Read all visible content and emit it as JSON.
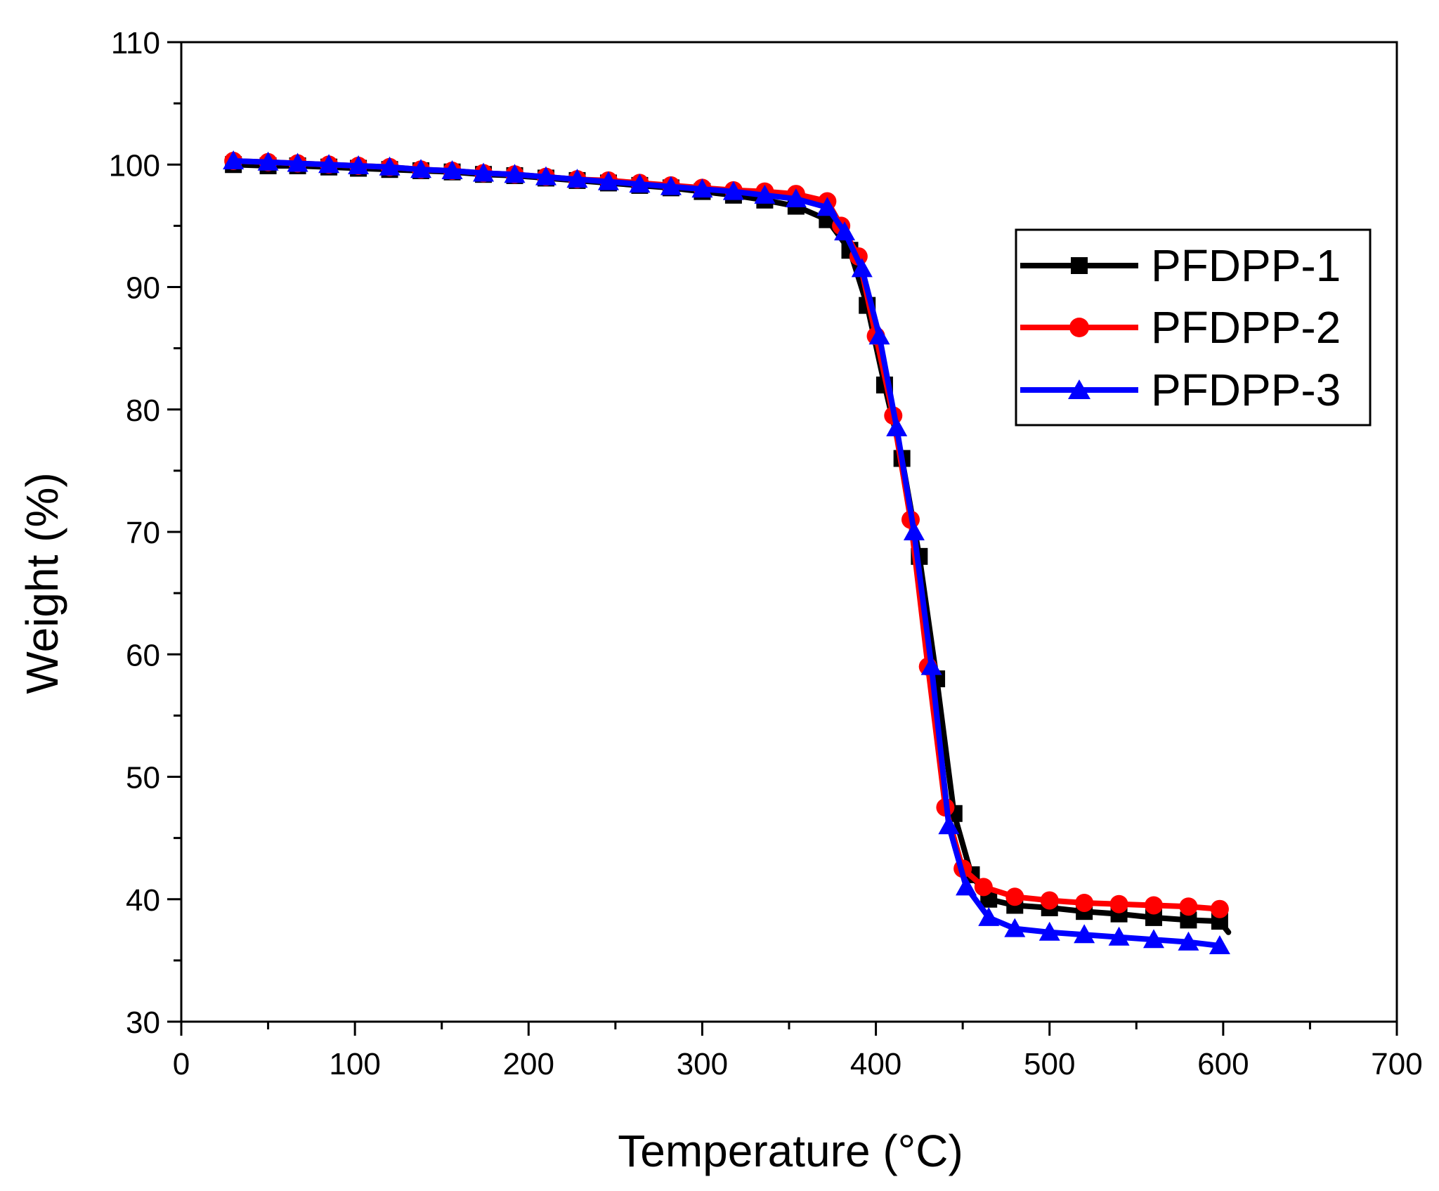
{
  "chart_data": {
    "type": "line",
    "title": "",
    "xlabel": "Temperature (°C)",
    "ylabel": "Weight (%)",
    "xlim": [
      0,
      700
    ],
    "ylim": [
      30,
      110
    ],
    "xticks": [
      0,
      100,
      200,
      300,
      400,
      500,
      600,
      700
    ],
    "yticks": [
      30,
      40,
      50,
      60,
      70,
      80,
      90,
      100,
      110
    ],
    "grid": false,
    "legend_position": "top-right",
    "series": [
      {
        "name": "PFDPP-1",
        "color": "#000000",
        "marker": "square",
        "x": [
          30,
          50,
          67,
          85,
          102,
          120,
          138,
          156,
          174,
          192,
          210,
          228,
          246,
          264,
          282,
          300,
          318,
          336,
          354,
          372,
          385,
          395,
          405,
          415,
          425,
          435,
          445,
          455,
          465,
          480,
          500,
          520,
          540,
          560,
          580,
          598,
          603
        ],
        "y": [
          100.0,
          99.9,
          99.9,
          99.8,
          99.7,
          99.6,
          99.5,
          99.4,
          99.2,
          99.1,
          98.9,
          98.7,
          98.5,
          98.3,
          98.1,
          97.8,
          97.5,
          97.1,
          96.6,
          95.5,
          93.0,
          88.5,
          82.0,
          76.0,
          68.0,
          58.0,
          47.0,
          42.0,
          40.0,
          39.5,
          39.3,
          39.0,
          38.8,
          38.5,
          38.3,
          38.2,
          37.3
        ]
      },
      {
        "name": "PFDPP-2",
        "color": "#ff0000",
        "marker": "circle",
        "x": [
          30,
          50,
          67,
          85,
          102,
          120,
          138,
          156,
          174,
          192,
          210,
          228,
          246,
          264,
          282,
          300,
          318,
          336,
          354,
          372,
          380,
          390,
          400,
          410,
          420,
          430,
          440,
          450,
          462,
          480,
          500,
          520,
          540,
          560,
          580,
          598
        ],
        "y": [
          100.3,
          100.2,
          100.1,
          100.0,
          99.9,
          99.8,
          99.6,
          99.5,
          99.3,
          99.2,
          99.0,
          98.8,
          98.7,
          98.5,
          98.3,
          98.1,
          97.9,
          97.8,
          97.6,
          97.0,
          95.0,
          92.5,
          86.0,
          79.5,
          71.0,
          59.0,
          47.5,
          42.5,
          41.0,
          40.2,
          39.9,
          39.7,
          39.6,
          39.5,
          39.4,
          39.2
        ]
      },
      {
        "name": "PFDPP-3",
        "color": "#0000ff",
        "marker": "triangle",
        "x": [
          30,
          50,
          67,
          85,
          102,
          120,
          138,
          156,
          174,
          192,
          210,
          228,
          246,
          264,
          282,
          300,
          318,
          336,
          354,
          372,
          382,
          392,
          402,
          412,
          422,
          432,
          442,
          452,
          465,
          480,
          500,
          520,
          540,
          560,
          580,
          598
        ],
        "y": [
          100.3,
          100.2,
          100.1,
          100.0,
          99.9,
          99.8,
          99.6,
          99.5,
          99.3,
          99.2,
          99.0,
          98.8,
          98.6,
          98.4,
          98.2,
          98.0,
          97.8,
          97.5,
          97.2,
          96.5,
          94.5,
          91.5,
          86.0,
          78.5,
          70.0,
          59.0,
          46.0,
          41.0,
          38.5,
          37.6,
          37.3,
          37.1,
          36.9,
          36.7,
          36.5,
          36.2
        ]
      }
    ]
  }
}
